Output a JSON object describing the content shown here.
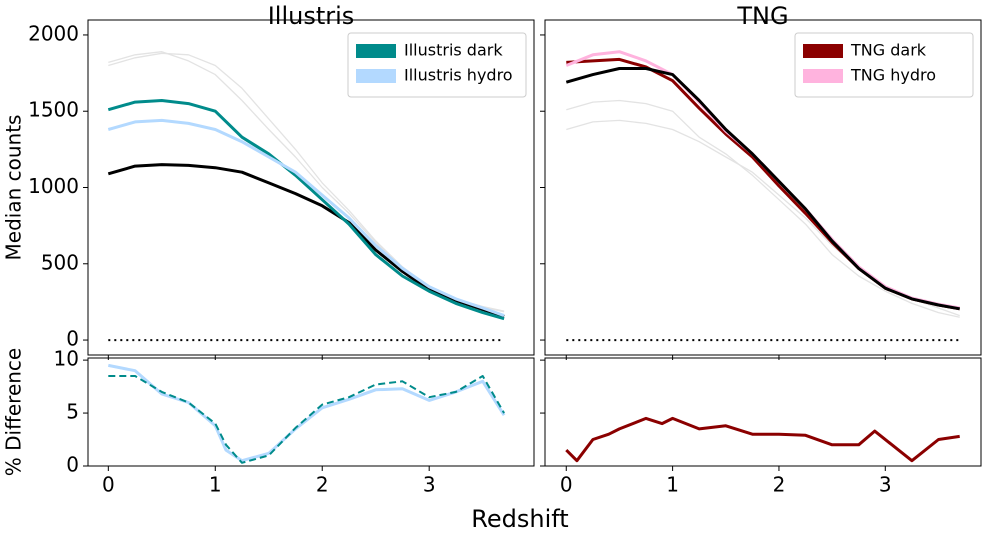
{
  "chart_data": [
    {
      "type": "line",
      "title": "Illustris",
      "ylabel": "Median counts",
      "x": [
        0,
        0.25,
        0.5,
        0.75,
        1,
        1.25,
        1.5,
        1.75,
        2,
        2.25,
        2.5,
        2.75,
        3,
        3.25,
        3.5,
        3.7
      ],
      "xlim": [
        -0.19,
        3.98
      ],
      "xticks": [
        0,
        1,
        2,
        3
      ],
      "xtick_labels": false,
      "ylim": [
        -98,
        2098
      ],
      "yticks": [
        0,
        500,
        1000,
        1500,
        2000
      ],
      "ytick_labels": true,
      "legend": "upper right",
      "series": [
        {
          "color": "#e3e3e3",
          "linewidth": 1.3,
          "linestyle": "solid",
          "values": [
            1800,
            1850,
            1880,
            1870,
            1800,
            1650,
            1450,
            1250,
            1030,
            850,
            650,
            480,
            350,
            270,
            220,
            190
          ]
        },
        {
          "color": "#e3e3e3",
          "linewidth": 1.3,
          "linestyle": "solid",
          "values": [
            1820,
            1870,
            1890,
            1830,
            1740,
            1570,
            1380,
            1200,
            1000,
            830,
            640,
            470,
            340,
            260,
            215,
            185
          ]
        },
        {
          "color": "#000000",
          "linewidth": 3,
          "linestyle": "solid",
          "values": [
            1090,
            1140,
            1150,
            1145,
            1130,
            1100,
            1030,
            960,
            880,
            770,
            590,
            450,
            330,
            260,
            200,
            155
          ]
        },
        {
          "name": "Illustris dark",
          "color": "#008b8b",
          "linewidth": 3,
          "linestyle": "solid",
          "values": [
            1510,
            1560,
            1570,
            1550,
            1500,
            1330,
            1220,
            1080,
            920,
            760,
            560,
            420,
            320,
            240,
            180,
            140
          ]
        },
        {
          "name": "Illustris hydro",
          "color": "#b3d9ff",
          "linewidth": 3,
          "linestyle": "solid",
          "values": [
            1380,
            1430,
            1440,
            1420,
            1380,
            1300,
            1200,
            1100,
            950,
            800,
            620,
            470,
            350,
            270,
            210,
            160
          ]
        },
        {
          "color": "#000000",
          "linewidth": 2,
          "linestyle": "dotted",
          "values": [
            0,
            0,
            0,
            0,
            0,
            0,
            0,
            0,
            0,
            0,
            0,
            0,
            0,
            0,
            0,
            0
          ]
        }
      ]
    },
    {
      "type": "line",
      "title": "TNG",
      "x": [
        0,
        0.25,
        0.5,
        0.75,
        1,
        1.25,
        1.5,
        1.75,
        2,
        2.25,
        2.5,
        2.75,
        3,
        3.25,
        3.5,
        3.7
      ],
      "xlim": [
        -0.2,
        3.9
      ],
      "xticks": [
        0,
        1,
        2,
        3
      ],
      "xtick_labels": false,
      "ylim": [
        -98,
        2098
      ],
      "yticks": [
        0,
        500,
        1000,
        1500,
        2000
      ],
      "ytick_labels": false,
      "legend": "upper right",
      "series": [
        {
          "color": "#e3e3e3",
          "linewidth": 1.3,
          "linestyle": "solid",
          "values": [
            1510,
            1560,
            1570,
            1550,
            1500,
            1330,
            1220,
            1080,
            920,
            760,
            560,
            420,
            320,
            240,
            180,
            150
          ]
        },
        {
          "color": "#e3e3e3",
          "linewidth": 1.3,
          "linestyle": "solid",
          "values": [
            1380,
            1430,
            1440,
            1420,
            1380,
            1300,
            1200,
            1100,
            950,
            800,
            620,
            470,
            350,
            270,
            210,
            160
          ]
        },
        {
          "name": "TNG dark",
          "color": "#8b0000",
          "linewidth": 3,
          "linestyle": "solid",
          "values": [
            1820,
            1830,
            1840,
            1790,
            1700,
            1520,
            1350,
            1200,
            1010,
            830,
            640,
            470,
            340,
            270,
            230,
            205
          ]
        },
        {
          "name": "TNG hydro",
          "color": "#ffb3de",
          "linewidth": 3,
          "linestyle": "solid",
          "values": [
            1800,
            1870,
            1890,
            1830,
            1740,
            1560,
            1370,
            1220,
            1040,
            860,
            660,
            480,
            350,
            275,
            235,
            210
          ]
        },
        {
          "color": "#000000",
          "linewidth": 3,
          "linestyle": "solid",
          "values": [
            1690,
            1740,
            1780,
            1780,
            1740,
            1570,
            1380,
            1220,
            1040,
            860,
            650,
            470,
            340,
            270,
            230,
            205
          ]
        },
        {
          "color": "#000000",
          "linewidth": 2,
          "linestyle": "dotted",
          "values": [
            0,
            0,
            0,
            0,
            0,
            0,
            0,
            0,
            0,
            0,
            0,
            0,
            0,
            0,
            0,
            0
          ]
        }
      ]
    },
    {
      "type": "line",
      "ylabel": "% Difference",
      "x": [
        0,
        0.25,
        0.5,
        0.75,
        1,
        1.1,
        1.25,
        1.5,
        1.75,
        2,
        2.25,
        2.5,
        2.75,
        3,
        3.25,
        3.5,
        3.7
      ],
      "xlim": [
        -0.19,
        3.98
      ],
      "xticks": [
        0,
        1,
        2,
        3
      ],
      "xtick_labels": true,
      "ylim": [
        0,
        10.2
      ],
      "yticks": [
        0,
        5,
        10
      ],
      "ytick_labels": true,
      "series": [
        {
          "color": "#b3d9ff",
          "linewidth": 3,
          "linestyle": "solid",
          "values": [
            9.5,
            9,
            6.8,
            6,
            3.8,
            1.5,
            0.5,
            1.2,
            3.5,
            5.5,
            6.3,
            7.2,
            7.3,
            6.2,
            7,
            8,
            4.8
          ]
        },
        {
          "color": "#008b8b",
          "linewidth": 2,
          "linestyle": "dashed",
          "values": [
            8.5,
            8.5,
            7,
            6,
            4,
            2,
            0.3,
            1,
            3.6,
            5.8,
            6.5,
            7.7,
            8,
            6.5,
            7,
            8.5,
            5
          ]
        }
      ]
    },
    {
      "type": "line",
      "x": [
        0,
        0.1,
        0.25,
        0.4,
        0.5,
        0.75,
        0.9,
        1,
        1.25,
        1.5,
        1.75,
        2,
        2.25,
        2.5,
        2.75,
        2.9,
        3.25,
        3.5,
        3.7
      ],
      "xlim": [
        -0.2,
        3.9
      ],
      "xticks": [
        0,
        1,
        2,
        3
      ],
      "xtick_labels": true,
      "ylim": [
        0,
        10.2
      ],
      "yticks": [
        0,
        5,
        10
      ],
      "ytick_labels": false,
      "series": [
        {
          "color": "#8b0000",
          "linewidth": 3,
          "linestyle": "solid",
          "values": [
            1.5,
            0.5,
            2.5,
            3,
            3.5,
            4.5,
            4,
            4.5,
            3.5,
            3.8,
            3,
            3,
            2.9,
            2,
            2,
            3.3,
            0.5,
            2.5,
            2.8
          ]
        }
      ]
    }
  ],
  "figure_xlabel": "Redshift"
}
